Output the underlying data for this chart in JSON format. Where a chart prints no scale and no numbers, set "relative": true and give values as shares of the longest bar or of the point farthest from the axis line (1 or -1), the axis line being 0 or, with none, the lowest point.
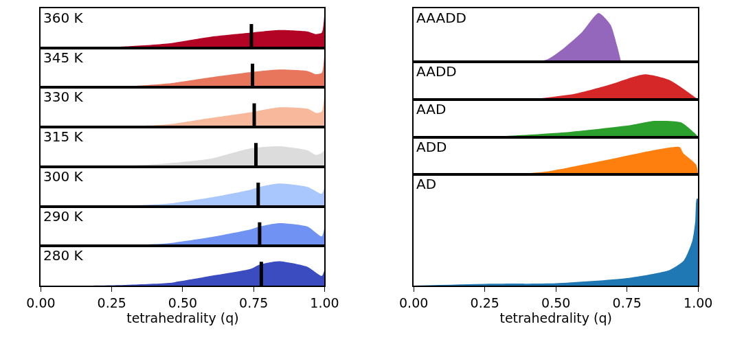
{
  "chart_data": [
    {
      "type": "area",
      "title": "360 K",
      "relative": true,
      "color": "#b40426",
      "xlim": [
        0,
        1
      ],
      "tick_labels": false,
      "x": [
        0,
        0.15,
        0.3,
        0.45,
        0.6,
        0.74,
        0.84,
        0.94,
        0.97,
        0.99,
        1.0
      ],
      "values": [
        0,
        0,
        0.04,
        0.12,
        0.3,
        0.41,
        0.48,
        0.44,
        0.37,
        0.41,
        1.0
      ],
      "ref_lines": [
        {
          "axis": "x",
          "value": 0.742,
          "color": "#000000"
        }
      ]
    },
    {
      "type": "area",
      "title": "345 K",
      "relative": true,
      "color": "#e8765c",
      "xlim": [
        0,
        1
      ],
      "tick_labels": false,
      "x": [
        0,
        0.15,
        0.3,
        0.45,
        0.6,
        0.74,
        0.84,
        0.94,
        0.97,
        0.99,
        1.0
      ],
      "values": [
        0,
        0,
        0.03,
        0.11,
        0.28,
        0.42,
        0.49,
        0.45,
        0.36,
        0.4,
        1.0
      ],
      "ref_lines": [
        {
          "axis": "x",
          "value": 0.746,
          "color": "#000000"
        }
      ]
    },
    {
      "type": "area",
      "title": "330 K",
      "relative": true,
      "color": "#f7b89c",
      "xlim": [
        0,
        1
      ],
      "tick_labels": false,
      "x": [
        0,
        0.15,
        0.3,
        0.45,
        0.6,
        0.74,
        0.84,
        0.94,
        0.97,
        0.99,
        1.0
      ],
      "values": [
        0,
        0,
        0.02,
        0.08,
        0.26,
        0.42,
        0.56,
        0.52,
        0.4,
        0.44,
        1.0
      ],
      "ref_lines": [
        {
          "axis": "x",
          "value": 0.752,
          "color": "#000000"
        }
      ]
    },
    {
      "type": "area",
      "title": "315 K",
      "relative": true,
      "color": "#dcdcdc",
      "xlim": [
        0,
        1
      ],
      "tick_labels": false,
      "x": [
        0,
        0.15,
        0.3,
        0.45,
        0.6,
        0.74,
        0.84,
        0.94,
        0.97,
        0.99,
        1.0
      ],
      "values": [
        0,
        0,
        0.04,
        0.17,
        0.4,
        0.9,
        1.0,
        0.8,
        0.57,
        0.67,
        0.83
      ],
      "ref_lines": [
        {
          "axis": "x",
          "value": 0.758,
          "color": "#000000"
        }
      ]
    },
    {
      "type": "area",
      "title": "300 K",
      "relative": true,
      "color": "#aac7fd",
      "xlim": [
        0,
        1
      ],
      "tick_labels": false,
      "x": [
        0,
        0.15,
        0.3,
        0.45,
        0.6,
        0.74,
        0.77,
        0.84,
        0.94,
        0.99,
        1.0
      ],
      "values": [
        0,
        0,
        0.03,
        0.12,
        0.39,
        0.73,
        0.85,
        1.0,
        0.85,
        0.55,
        0.85
      ],
      "ref_lines": [
        {
          "axis": "x",
          "value": 0.766,
          "color": "#000000"
        }
      ]
    },
    {
      "type": "area",
      "title": "290 K",
      "relative": true,
      "color": "#7093f3",
      "xlim": [
        0,
        1
      ],
      "tick_labels": false,
      "x": [
        0,
        0.15,
        0.3,
        0.45,
        0.6,
        0.74,
        0.77,
        0.84,
        0.94,
        0.99,
        1.0
      ],
      "values": [
        0,
        0,
        0.03,
        0.12,
        0.39,
        0.73,
        0.85,
        1.0,
        0.85,
        0.42,
        0.85
      ],
      "ref_lines": [
        {
          "axis": "x",
          "value": 0.771,
          "color": "#000000"
        }
      ]
    },
    {
      "type": "area",
      "title": "280 K",
      "relative": true,
      "color": "#3b4cc0",
      "xlim": [
        0,
        1
      ],
      "tick_labels": "x",
      "xlabel": "tetrahedrality (q)",
      "xticks": [
        {
          "value": 0,
          "label": "0.00"
        },
        {
          "value": 0.25,
          "label": "0.25"
        },
        {
          "value": 0.5,
          "label": "0.50"
        },
        {
          "value": 0.75,
          "label": "0.75"
        },
        {
          "value": 1,
          "label": "1.00"
        }
      ],
      "x": [
        0,
        0.15,
        0.3,
        0.45,
        0.6,
        0.74,
        0.77,
        0.84,
        0.94,
        0.99,
        1.0
      ],
      "values": [
        0,
        0,
        0.03,
        0.11,
        0.4,
        0.69,
        0.86,
        1.0,
        0.77,
        0.4,
        0.66
      ],
      "ref_lines": [
        {
          "axis": "x",
          "value": 0.777,
          "color": "#000000"
        }
      ]
    },
    {
      "type": "area",
      "title": "AAADD",
      "relative": true,
      "color": "#9467bd",
      "xlim": [
        0,
        1
      ],
      "tick_labels": false,
      "x": [
        0.406,
        0.47,
        0.53,
        0.592,
        0.65,
        0.692,
        0.715,
        0.729
      ],
      "values": [
        0,
        0.05,
        0.29,
        0.61,
        1.0,
        0.76,
        0.33,
        0
      ]
    },
    {
      "type": "area",
      "title": "AADD",
      "relative": true,
      "color": "#d62728",
      "xlim": [
        0,
        1
      ],
      "tick_labels": false,
      "x": [
        0.406,
        0.568,
        0.684,
        0.812,
        0.9,
        1.0
      ],
      "values": [
        0,
        0.23,
        0.57,
        1.0,
        0.77,
        0
      ]
    },
    {
      "type": "area",
      "title": "AAD",
      "relative": true,
      "color": "#2ca02c",
      "xlim": [
        0,
        1
      ],
      "tick_labels": false,
      "x": [
        0.244,
        0.53,
        0.762,
        0.847,
        0.94,
        0.993,
        1.0
      ],
      "values": [
        0,
        0.3,
        0.74,
        1.0,
        0.91,
        0.17,
        0
      ]
    },
    {
      "type": "area",
      "title": "ADD",
      "relative": true,
      "color": "#ff7f0e",
      "xlim": [
        0,
        1
      ],
      "tick_labels": false,
      "x": [
        0.336,
        0.466,
        0.684,
        0.935,
        0.947,
        0.993,
        1.0
      ],
      "values": [
        0,
        0.1,
        0.54,
        1.0,
        0.79,
        0.36,
        0
      ]
    },
    {
      "type": "area",
      "title": "AD",
      "relative": true,
      "color": "#1f77b4",
      "xlim": [
        0,
        1
      ],
      "tick_labels": "x",
      "xlabel": "tetrahedrality (q)",
      "xticks": [
        {
          "value": 0,
          "label": "0.00"
        },
        {
          "value": 0.25,
          "label": "0.25"
        },
        {
          "value": 0.5,
          "label": "0.50"
        },
        {
          "value": 0.75,
          "label": "0.75"
        },
        {
          "value": 1,
          "label": "1.00"
        }
      ],
      "x": [
        0,
        0.25,
        0.5,
        0.75,
        0.9,
        0.95,
        0.98,
        0.99,
        0.995,
        1.0
      ],
      "values": [
        0,
        0.02,
        0.028,
        0.087,
        0.18,
        0.29,
        0.52,
        0.74,
        1.0,
        1.0
      ]
    }
  ]
}
